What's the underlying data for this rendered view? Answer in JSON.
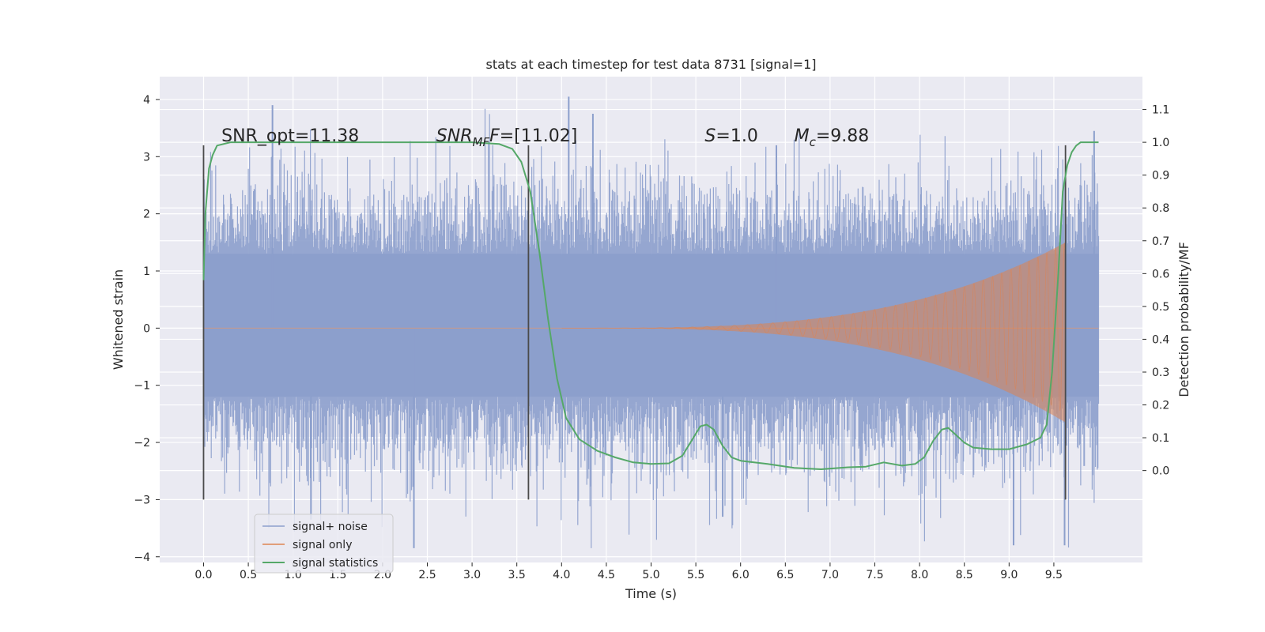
{
  "chart_data": {
    "type": "line",
    "title": "stats at each timestep for test data 8731 [signal=1]",
    "xlabel": "Time (s)",
    "ylabel": "Whitened strain",
    "ylabel_right": "Detection probability/MF",
    "xlim": [
      -0.49,
      10.49
    ],
    "ylim": [
      -4.1,
      4.4
    ],
    "ylim_right": [
      -0.28,
      1.2
    ],
    "x_ticks": [
      "0.0",
      "0.5",
      "1.0",
      "1.5",
      "2.0",
      "2.5",
      "3.0",
      "3.5",
      "4.0",
      "4.5",
      "5.0",
      "5.5",
      "6.0",
      "6.5",
      "7.0",
      "7.5",
      "8.0",
      "8.5",
      "9.0",
      "9.5"
    ],
    "y_ticks": [
      "4",
      "3",
      "2",
      "1",
      "0",
      "−1",
      "−2",
      "−3",
      "−4"
    ],
    "y_ticks_right": [
      "1.1",
      "1.0",
      "0.9",
      "0.8",
      "0.7",
      "0.6",
      "0.5",
      "0.4",
      "0.3",
      "0.2",
      "0.1",
      "0.0"
    ],
    "grid": true,
    "legend_position": "bottom-left",
    "annotations": {
      "snr_opt": "SNR_opt=11.38",
      "snr_mf_label": "SNR",
      "snr_mf_sub": "MF",
      "snr_mf_value": "=[11.02]",
      "s_label": "S",
      "s_value": "=1.0",
      "mc_label": "M",
      "mc_sub": "c",
      "mc_value": "=9.88"
    },
    "vertical_lines_x": [
      0.0,
      3.63,
      9.63
    ],
    "vertical_lines_y": [
      -3.0,
      3.2
    ],
    "series": [
      {
        "name": "signal+ noise",
        "axis": "left",
        "color": "#8c9fcc",
        "description_range": {
          "x_start": 0.0,
          "x_end": 10.0,
          "core_band": [
            -1.2,
            1.3
          ],
          "peak_max": 4.05,
          "peak_min": -3.85
        }
      },
      {
        "name": "signal only",
        "axis": "left",
        "color": "#dd8452",
        "chirp": {
          "x_start": 4.0,
          "x_end": 9.63,
          "max_amplitude": 1.5
        }
      },
      {
        "name": "signal statistics",
        "axis": "right",
        "color": "#55a868",
        "x": [
          0.0,
          0.02,
          0.06,
          0.1,
          0.15,
          0.3,
          0.6,
          1.0,
          2.0,
          3.0,
          3.3,
          3.45,
          3.55,
          3.65,
          3.75,
          3.85,
          3.95,
          4.05,
          4.2,
          4.4,
          4.6,
          4.8,
          5.0,
          5.2,
          5.35,
          5.45,
          5.55,
          5.62,
          5.7,
          5.8,
          5.9,
          6.0,
          6.3,
          6.6,
          6.9,
          7.2,
          7.4,
          7.6,
          7.8,
          7.95,
          8.05,
          8.15,
          8.25,
          8.32,
          8.4,
          8.5,
          8.6,
          8.8,
          9.0,
          9.2,
          9.35,
          9.42,
          9.48,
          9.55,
          9.6,
          9.65,
          9.7,
          9.75,
          9.8,
          9.9,
          10.0
        ],
        "values": [
          0.58,
          0.78,
          0.92,
          0.96,
          0.99,
          1.0,
          1.0,
          1.0,
          1.0,
          1.0,
          0.995,
          0.98,
          0.94,
          0.85,
          0.67,
          0.46,
          0.28,
          0.16,
          0.095,
          0.06,
          0.04,
          0.025,
          0.02,
          0.022,
          0.045,
          0.09,
          0.135,
          0.14,
          0.125,
          0.075,
          0.04,
          0.03,
          0.02,
          0.008,
          0.004,
          0.01,
          0.012,
          0.025,
          0.015,
          0.02,
          0.04,
          0.09,
          0.125,
          0.13,
          0.11,
          0.085,
          0.07,
          0.065,
          0.065,
          0.08,
          0.1,
          0.14,
          0.3,
          0.6,
          0.85,
          0.93,
          0.97,
          0.99,
          1.0,
          1.0,
          1.0
        ]
      }
    ]
  }
}
